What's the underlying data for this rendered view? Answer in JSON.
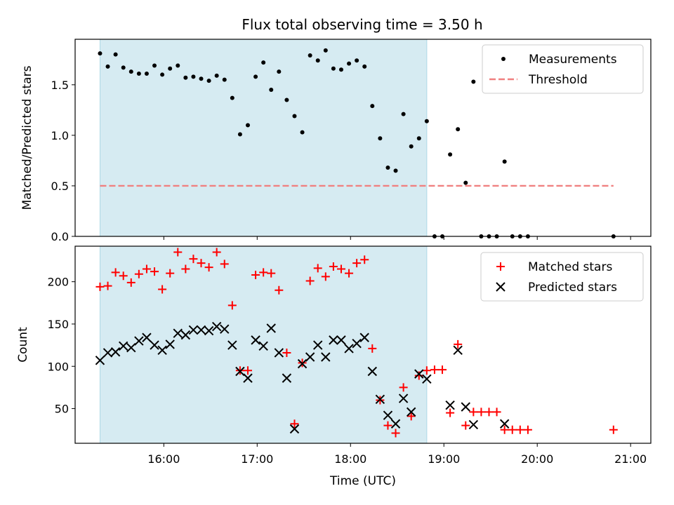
{
  "title": "Flux total observing time = 3.50 h",
  "chart_data": [
    {
      "type": "scatter",
      "panel": "top",
      "title": "Flux total observing time = 3.50 h",
      "xlabel": "",
      "ylabel": "Matched/Predicted stars",
      "xlim": [
        "15:03",
        "21:13"
      ],
      "ylim": [
        0,
        1.95
      ],
      "yticks": [
        0.0,
        0.5,
        1.0,
        1.5
      ],
      "ytick_labels": [
        "0.0",
        "0.5",
        "1.0",
        "1.5"
      ],
      "xticks": [
        "16:00",
        "17:00",
        "18:00",
        "19:00",
        "20:00",
        "21:00"
      ],
      "highlight_span": [
        "15:19",
        "18:49"
      ],
      "legend_position": "upper right",
      "series": [
        {
          "name": "Measurements",
          "marker": "dot",
          "color": "#000000",
          "x": [
            "15:19",
            "15:24",
            "15:29",
            "15:34",
            "15:39",
            "15:44",
            "15:49",
            "15:54",
            "15:59",
            "16:04",
            "16:09",
            "16:14",
            "16:19",
            "16:24",
            "16:29",
            "16:34",
            "16:39",
            "16:44",
            "16:49",
            "16:54",
            "16:59",
            "17:04",
            "17:09",
            "17:14",
            "17:19",
            "17:24",
            "17:29",
            "17:34",
            "17:39",
            "17:44",
            "17:49",
            "17:54",
            "17:59",
            "18:04",
            "18:09",
            "18:14",
            "18:19",
            "18:24",
            "18:29",
            "18:34",
            "18:39",
            "18:44",
            "18:49",
            "18:54",
            "18:59",
            "19:04",
            "19:09",
            "19:14",
            "19:19",
            "19:24",
            "19:29",
            "19:34",
            "19:39",
            "19:44",
            "19:49",
            "19:54",
            "20:49"
          ],
          "y": [
            1.81,
            1.68,
            1.8,
            1.67,
            1.63,
            1.61,
            1.61,
            1.69,
            1.6,
            1.66,
            1.69,
            1.57,
            1.58,
            1.56,
            1.54,
            1.59,
            1.55,
            1.37,
            1.01,
            1.1,
            1.58,
            1.72,
            1.45,
            1.63,
            1.35,
            1.19,
            1.03,
            1.79,
            1.74,
            1.84,
            1.66,
            1.65,
            1.71,
            1.74,
            1.68,
            1.29,
            0.97,
            0.68,
            0.65,
            1.21,
            0.89,
            0.97,
            1.14,
            0.0,
            0.0,
            0.81,
            1.06,
            0.53,
            1.53,
            0.0,
            0.0,
            0.0,
            0.74,
            0.0,
            0.0,
            0.0,
            0.0
          ]
        },
        {
          "name": "Threshold",
          "style": "dashed",
          "color": "#f08080",
          "x": [
            "15:19",
            "20:49"
          ],
          "y": [
            0.5,
            0.5
          ]
        }
      ]
    },
    {
      "type": "scatter",
      "panel": "bottom",
      "xlabel": "Time (UTC)",
      "ylabel": "Count",
      "xlim": [
        "15:03",
        "21:13"
      ],
      "ylim": [
        9,
        242
      ],
      "yticks": [
        50,
        100,
        150,
        200
      ],
      "ytick_labels": [
        "50",
        "100",
        "150",
        "200"
      ],
      "xticks": [
        "16:00",
        "17:00",
        "18:00",
        "19:00",
        "20:00",
        "21:00"
      ],
      "xtick_labels": [
        "16:00",
        "17:00",
        "18:00",
        "19:00",
        "20:00",
        "21:00"
      ],
      "highlight_span": [
        "15:19",
        "18:49"
      ],
      "legend_position": "upper right",
      "series": [
        {
          "name": "Matched stars",
          "marker": "plus",
          "color": "#ff0000",
          "x": [
            "15:19",
            "15:24",
            "15:29",
            "15:34",
            "15:39",
            "15:44",
            "15:49",
            "15:54",
            "15:59",
            "16:04",
            "16:09",
            "16:14",
            "16:19",
            "16:24",
            "16:29",
            "16:34",
            "16:39",
            "16:44",
            "16:49",
            "16:54",
            "16:59",
            "17:04",
            "17:09",
            "17:14",
            "17:19",
            "17:24",
            "17:29",
            "17:34",
            "17:39",
            "17:44",
            "17:49",
            "17:54",
            "17:59",
            "18:04",
            "18:09",
            "18:14",
            "18:19",
            "18:24",
            "18:29",
            "18:34",
            "18:39",
            "18:44",
            "18:49",
            "18:54",
            "18:59",
            "19:04",
            "19:09",
            "19:14",
            "19:19",
            "19:24",
            "19:29",
            "19:34",
            "19:39",
            "19:44",
            "19:49",
            "19:54",
            "20:49"
          ],
          "y": [
            194,
            195,
            211,
            207,
            199,
            209,
            215,
            212,
            191,
            210,
            235,
            215,
            227,
            222,
            217,
            235,
            221,
            172,
            95,
            95,
            208,
            211,
            210,
            190,
            116,
            32,
            104,
            201,
            216,
            206,
            218,
            215,
            210,
            222,
            226,
            121,
            60,
            30,
            21,
            75,
            41,
            89,
            95,
            96,
            96,
            45,
            126,
            30,
            46,
            46,
            46,
            46,
            25,
            25,
            25,
            25,
            25
          ]
        },
        {
          "name": "Predicted stars",
          "marker": "x",
          "color": "#000000",
          "x": [
            "15:19",
            "15:24",
            "15:29",
            "15:34",
            "15:39",
            "15:44",
            "15:49",
            "15:54",
            "15:59",
            "16:04",
            "16:09",
            "16:14",
            "16:19",
            "16:24",
            "16:29",
            "16:34",
            "16:39",
            "16:44",
            "16:49",
            "16:54",
            "16:59",
            "17:04",
            "17:09",
            "17:14",
            "17:19",
            "17:24",
            "17:29",
            "17:34",
            "17:39",
            "17:44",
            "17:49",
            "17:54",
            "17:59",
            "18:04",
            "18:09",
            "18:14",
            "18:19",
            "18:24",
            "18:29",
            "18:34",
            "18:39",
            "18:44",
            "18:49",
            "19:04",
            "19:09",
            "19:14",
            "19:19",
            "19:39"
          ],
          "y": [
            107,
            116,
            117,
            124,
            122,
            130,
            134,
            125,
            119,
            126,
            139,
            137,
            143,
            143,
            142,
            147,
            144,
            125,
            94,
            86,
            131,
            124,
            145,
            116,
            86,
            26,
            103,
            111,
            125,
            111,
            131,
            131,
            121,
            127,
            134,
            94,
            61,
            42,
            32,
            62,
            46,
            91,
            85,
            54,
            119,
            52,
            31,
            32
          ]
        }
      ]
    }
  ]
}
